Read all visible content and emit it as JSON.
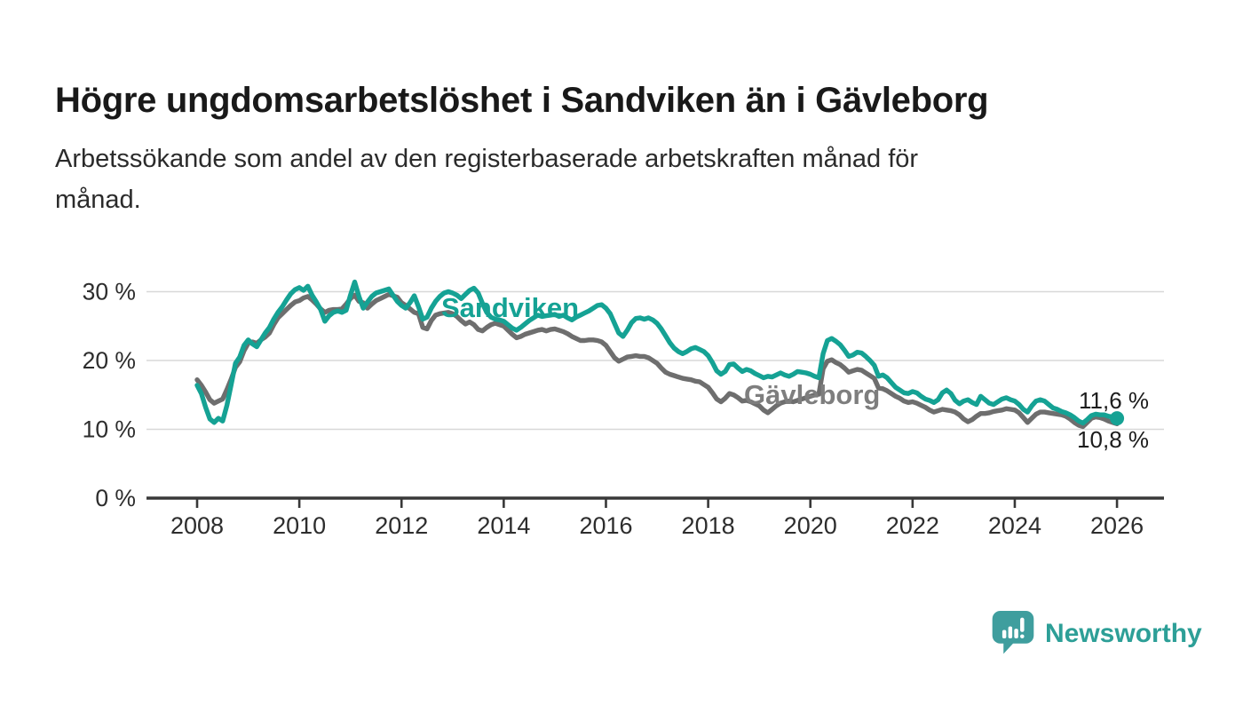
{
  "header": {
    "title": "Högre ungdomsarbetslöshet i Sandviken än i Gävleborg",
    "subtitle": "Arbetssökande som andel av den registerbaserade arbetskraften månad för månad.",
    "subtitle_lines": [
      "Arbetssökande som andel av den registerbaserade arbetskraften månad för",
      "månad."
    ]
  },
  "chart_data": {
    "type": "line",
    "title": "Högre ungdomsarbetslöshet i Sandviken än i Gävleborg",
    "subtitle": "Arbetssökande som andel av den registerbaserade arbetskraften månad för månad.",
    "x_unit": "month",
    "x_start_year": 2008,
    "x_start_month": 1,
    "x_end_year": 2026,
    "x_end_month": 1,
    "frequency": "monthly",
    "xlim": [
      2007.0,
      2026.92
    ],
    "ylim": [
      0,
      33
    ],
    "x_ticks": [
      2008,
      2010,
      2012,
      2014,
      2016,
      2018,
      2020,
      2022,
      2024,
      2026
    ],
    "x_tick_labels": [
      "2008",
      "2010",
      "2012",
      "2014",
      "2016",
      "2018",
      "2020",
      "2022",
      "2024",
      "2026"
    ],
    "y_ticks": [
      0,
      10,
      20,
      30
    ],
    "y_tick_labels": [
      "0 %",
      "10 %",
      "20 %",
      "30 %"
    ],
    "grid": true,
    "legend_position": "inline-labels",
    "series": [
      {
        "name": "Gävleborg",
        "color": "#6e6e6e",
        "label_color": "#7e7e7e",
        "end_label": "10,8 %",
        "end_value": 10.8,
        "end_dot": false,
        "values": [
          17.2,
          16.4,
          15.4,
          14.3,
          13.8,
          14.1,
          14.4,
          15.8,
          17.3,
          19.0,
          19.8,
          21.4,
          22.5,
          22.7,
          22.5,
          23.0,
          23.4,
          24.0,
          25.2,
          26.2,
          26.8,
          27.4,
          28.0,
          28.5,
          28.7,
          29.1,
          29.3,
          28.8,
          28.2,
          27.5,
          27.0,
          27.3,
          27.4,
          27.4,
          27.5,
          28.2,
          29.0,
          29.5,
          28.6,
          28.4,
          27.6,
          28.2,
          28.7,
          29.0,
          29.3,
          29.6,
          29.4,
          29.2,
          28.4,
          28.0,
          27.5,
          27.0,
          26.8,
          24.8,
          24.6,
          25.8,
          26.6,
          26.8,
          26.9,
          27.0,
          26.8,
          26.4,
          25.8,
          25.3,
          25.6,
          25.2,
          24.5,
          24.3,
          24.8,
          25.2,
          25.4,
          25.2,
          25.0,
          24.4,
          23.8,
          23.3,
          23.5,
          23.8,
          24.0,
          24.2,
          24.4,
          24.5,
          24.3,
          24.5,
          24.6,
          24.4,
          24.2,
          23.9,
          23.5,
          23.2,
          22.9,
          22.9,
          23.0,
          23.0,
          22.9,
          22.7,
          22.2,
          21.3,
          20.4,
          19.9,
          20.2,
          20.5,
          20.6,
          20.7,
          20.6,
          20.6,
          20.4,
          20.0,
          19.6,
          18.9,
          18.3,
          18.0,
          17.8,
          17.6,
          17.4,
          17.3,
          17.2,
          17.0,
          16.9,
          16.5,
          16.1,
          15.3,
          14.4,
          14.0,
          14.5,
          15.2,
          15.0,
          14.6,
          14.1,
          14.2,
          14.0,
          13.7,
          13.4,
          12.8,
          12.4,
          12.9,
          13.4,
          13.8,
          14.0,
          14.1,
          14.0,
          14.2,
          14.4,
          14.6,
          14.8,
          15.0,
          15.1,
          18.8,
          19.9,
          20.1,
          19.7,
          19.4,
          18.9,
          18.3,
          18.5,
          18.7,
          18.6,
          18.2,
          17.8,
          17.4,
          16.0,
          15.9,
          15.6,
          15.2,
          14.8,
          14.5,
          14.1,
          13.9,
          14.0,
          13.8,
          13.5,
          13.2,
          12.8,
          12.5,
          12.7,
          12.9,
          12.8,
          12.7,
          12.5,
          12.1,
          11.5,
          11.1,
          11.4,
          11.9,
          12.3,
          12.3,
          12.4,
          12.6,
          12.7,
          12.8,
          13.0,
          12.9,
          12.8,
          12.4,
          11.7,
          11.0,
          11.6,
          12.2,
          12.5,
          12.5,
          12.4,
          12.3,
          12.2,
          12.1,
          11.9,
          11.5,
          11.0,
          10.6,
          10.4,
          11.0,
          11.6,
          11.8,
          11.7,
          11.5,
          11.2,
          11.0,
          10.8
        ]
      },
      {
        "name": "Sandviken",
        "color": "#15a294",
        "label_color": "#15a294",
        "end_label": "11,6 %",
        "end_value": 11.6,
        "end_dot": true,
        "values": [
          16.4,
          15.2,
          13.2,
          11.5,
          11.0,
          11.6,
          11.2,
          13.5,
          16.5,
          19.6,
          20.5,
          22.2,
          23.0,
          22.4,
          22.0,
          23.0,
          24.0,
          24.8,
          26.0,
          27.0,
          27.8,
          28.8,
          29.7,
          30.3,
          30.6,
          30.2,
          30.8,
          29.5,
          28.5,
          27.4,
          25.7,
          26.5,
          27.0,
          27.2,
          27.0,
          27.3,
          29.5,
          31.4,
          29.3,
          27.6,
          28.5,
          29.3,
          29.8,
          30.0,
          30.2,
          30.4,
          29.5,
          28.6,
          28.0,
          27.6,
          28.4,
          29.4,
          27.8,
          26.0,
          26.3,
          27.6,
          28.6,
          29.3,
          29.8,
          30.0,
          29.8,
          29.5,
          29.0,
          29.6,
          30.2,
          30.5,
          29.8,
          28.3,
          27.0,
          26.3,
          26.0,
          25.9,
          25.7,
          25.2,
          24.7,
          24.4,
          24.8,
          25.3,
          25.8,
          26.2,
          26.6,
          26.4,
          26.5,
          26.6,
          26.7,
          26.4,
          26.6,
          26.2,
          25.9,
          26.3,
          26.6,
          26.9,
          27.2,
          27.6,
          28.0,
          28.1,
          27.6,
          26.8,
          25.4,
          24.0,
          23.5,
          24.4,
          25.5,
          26.1,
          26.2,
          26.0,
          26.2,
          25.9,
          25.4,
          24.6,
          23.6,
          22.6,
          21.8,
          21.3,
          21.0,
          21.3,
          21.7,
          21.9,
          21.6,
          21.3,
          20.7,
          19.7,
          18.5,
          18.0,
          18.4,
          19.4,
          19.5,
          18.9,
          18.4,
          18.7,
          18.5,
          18.1,
          17.8,
          17.5,
          17.7,
          17.6,
          17.9,
          18.2,
          17.9,
          17.7,
          18.0,
          18.4,
          18.3,
          18.2,
          18.0,
          17.7,
          17.5,
          21.0,
          22.9,
          23.2,
          22.8,
          22.3,
          21.5,
          20.6,
          20.8,
          21.2,
          21.1,
          20.6,
          20.0,
          19.3,
          17.7,
          17.9,
          17.5,
          16.8,
          16.1,
          15.7,
          15.3,
          15.2,
          15.5,
          15.3,
          14.8,
          14.4,
          14.2,
          13.9,
          14.3,
          15.3,
          15.7,
          15.2,
          14.2,
          13.7,
          14.1,
          14.3,
          13.9,
          13.6,
          14.8,
          14.3,
          13.8,
          13.6,
          14.0,
          14.4,
          14.6,
          14.3,
          14.1,
          13.6,
          12.9,
          12.5,
          13.4,
          14.1,
          14.3,
          14.1,
          13.6,
          13.1,
          12.9,
          12.6,
          12.4,
          12.1,
          11.7,
          11.2,
          10.9,
          11.4,
          12.0,
          12.2,
          12.1,
          12.1,
          11.9,
          11.8,
          11.6
        ]
      }
    ],
    "colors": {
      "sandviken": "#15a294",
      "gavleborg": "#6e6e6e",
      "grid": "#d8d8d8",
      "axis": "#383838",
      "tick_text": "#2d2d2d",
      "end_label_text": "#1c1c1c"
    }
  },
  "footer": {
    "brand": "Newsworthy"
  }
}
